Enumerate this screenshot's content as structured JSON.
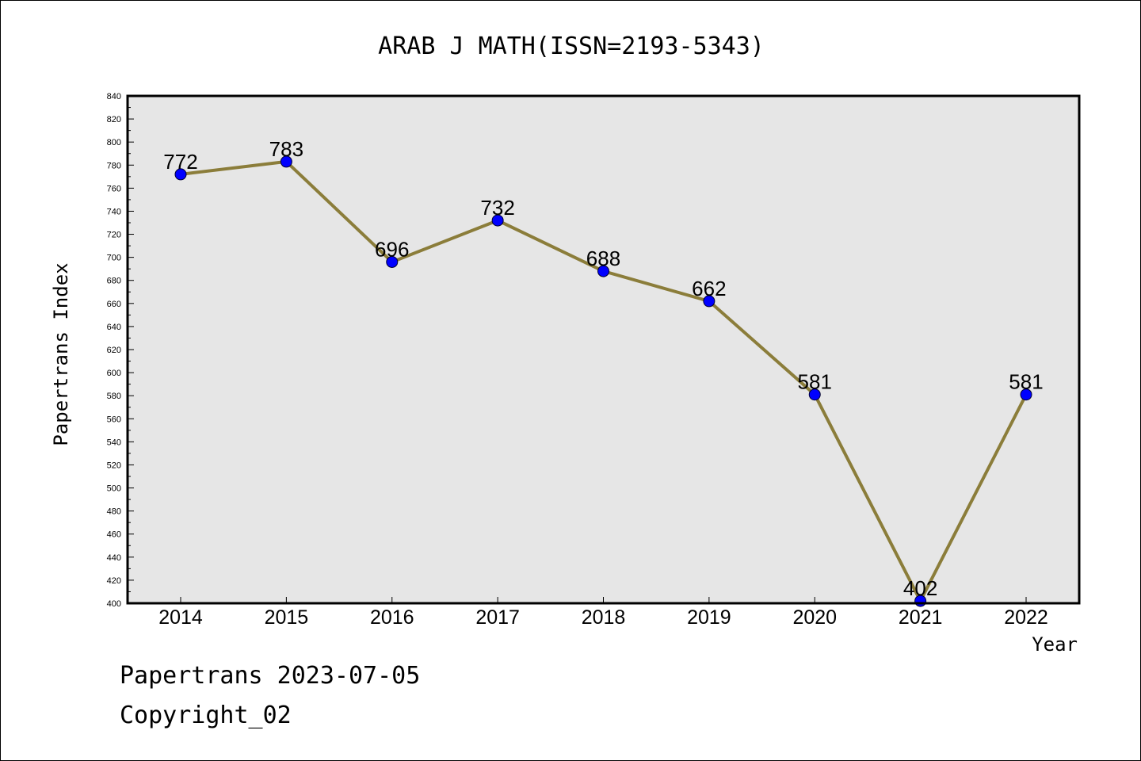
{
  "chart_data": {
    "type": "line",
    "title": "ARAB J MATH(ISSN=2193-5343)",
    "xlabel": "Year",
    "ylabel": "Papertrans Index",
    "categories": [
      "2014",
      "2015",
      "2016",
      "2017",
      "2018",
      "2019",
      "2020",
      "2021",
      "2022"
    ],
    "values": [
      772,
      783,
      696,
      732,
      688,
      662,
      581,
      402,
      581
    ],
    "data_labels": [
      "772",
      "783",
      "696",
      "732",
      "688",
      "662",
      "581",
      "402",
      "581"
    ],
    "ylim": [
      400,
      840
    ],
    "yticks": [
      400,
      420,
      440,
      460,
      480,
      500,
      520,
      540,
      560,
      580,
      600,
      620,
      640,
      660,
      680,
      700,
      720,
      740,
      760,
      780,
      800,
      820,
      840
    ],
    "grid": false,
    "legend": "none",
    "colors": {
      "line": "#8b7d3a",
      "marker": "#0000ff",
      "plot_background": "#e6e6e6",
      "frame": "#000000"
    }
  },
  "footer": {
    "date_line": "Papertrans 2023-07-05",
    "copyright": "Copyright_02"
  }
}
